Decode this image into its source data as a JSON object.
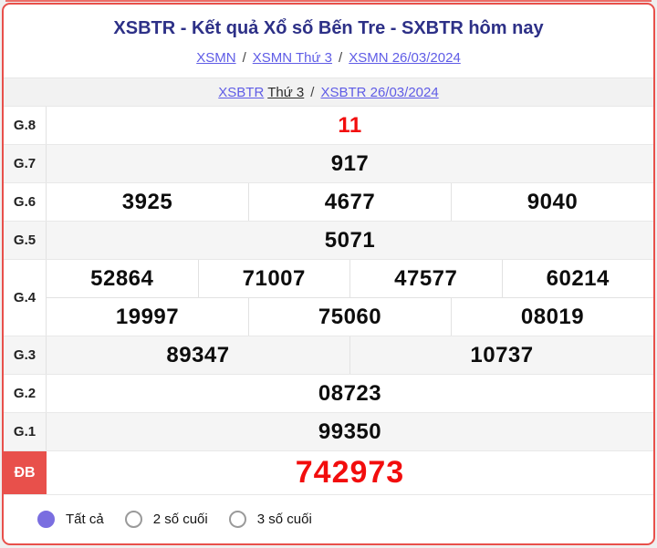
{
  "colors": {
    "accent_red": "#e8504b",
    "result_red": "#f20d0d",
    "title_navy": "#2d3087",
    "link_blue": "#5f5ce6",
    "radio_purple": "#7a6ee0",
    "row_shade": "#f5f5f5"
  },
  "header": {
    "title": "XSBTR - Kết quả Xổ số Bến Tre - SXBTR hôm nay"
  },
  "breadcrumbs": {
    "separator": "/",
    "row1": [
      "XSMN",
      "XSMN Thứ 3",
      "XSMN 26/03/2024"
    ],
    "row2": {
      "day_link_prefix": "XSBTR",
      "day_link_suffix": "Thứ 3",
      "date_link": "XSBTR 26/03/2024"
    }
  },
  "results": {
    "rows": [
      {
        "label": "G.8",
        "lines": [
          [
            "11"
          ]
        ],
        "highlight": true
      },
      {
        "label": "G.7",
        "lines": [
          [
            "917"
          ]
        ]
      },
      {
        "label": "G.6",
        "lines": [
          [
            "3925",
            "4677",
            "9040"
          ]
        ]
      },
      {
        "label": "G.5",
        "lines": [
          [
            "5071"
          ]
        ]
      },
      {
        "label": "G.4",
        "lines": [
          [
            "52864",
            "71007",
            "47577",
            "60214"
          ],
          [
            "19997",
            "75060",
            "08019"
          ]
        ]
      },
      {
        "label": "G.3",
        "lines": [
          [
            "89347",
            "10737"
          ]
        ]
      },
      {
        "label": "G.2",
        "lines": [
          [
            "08723"
          ]
        ]
      },
      {
        "label": "G.1",
        "lines": [
          [
            "99350"
          ]
        ]
      },
      {
        "label": "ĐB",
        "lines": [
          [
            "742973"
          ]
        ],
        "special": true
      }
    ]
  },
  "filters": [
    {
      "label": "Tất cả",
      "selected": true
    },
    {
      "label": "2 số cuối",
      "selected": false
    },
    {
      "label": "3 số cuối",
      "selected": false
    }
  ]
}
